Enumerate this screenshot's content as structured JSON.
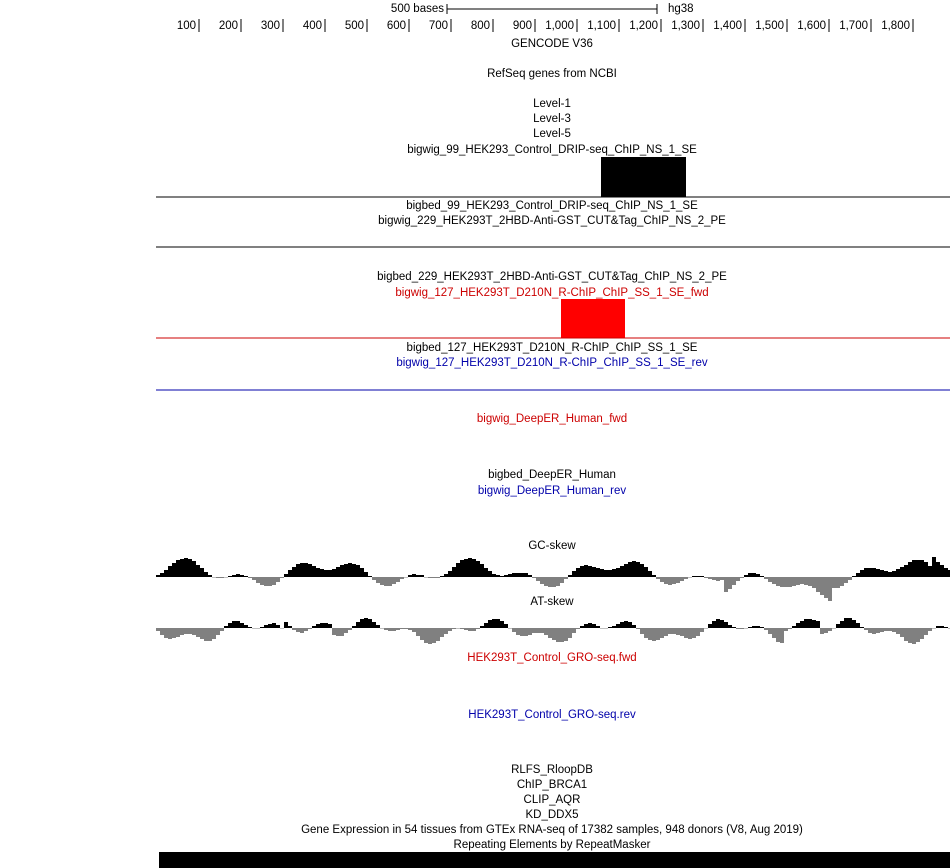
{
  "scale": {
    "label": "500 bases",
    "assembly": "hg38"
  },
  "ruler": [
    "100",
    "200",
    "300",
    "400",
    "500",
    "600",
    "700",
    "800",
    "900",
    "1,000",
    "1,100",
    "1,200",
    "1,300",
    "1,400",
    "1,500",
    "1,600",
    "1,700",
    "1,800"
  ],
  "tracks": [
    {
      "label": "GENCODE V36",
      "color": "#000000"
    },
    {
      "label": "RefSeq genes from NCBI",
      "color": "#000000"
    },
    {
      "label": "Level-1",
      "color": "#000000"
    },
    {
      "label": "Level-3",
      "color": "#000000"
    },
    {
      "label": "Level-5",
      "color": "#000000"
    },
    {
      "label": "bigwig_99_HEK293_Control_DRIP-seq_ChIP_NS_1_SE",
      "color": "#000000"
    },
    {
      "label": "bigbed_99_HEK293_Control_DRIP-seq_ChIP_NS_1_SE",
      "color": "#000000"
    },
    {
      "label": "bigwig_229_HEK293T_2HBD-Anti-GST_CUT&Tag_ChIP_NS_2_PE",
      "color": "#000000"
    },
    {
      "label": "bigbed_229_HEK293T_2HBD-Anti-GST_CUT&Tag_ChIP_NS_2_PE",
      "color": "#000000"
    },
    {
      "label": "bigwig_127_HEK293T_D210N_R-ChIP_ChIP_SS_1_SE_fwd",
      "color": "#cc0000"
    },
    {
      "label": "bigbed_127_HEK293T_D210N_R-ChIP_ChIP_SS_1_SE",
      "color": "#000000"
    },
    {
      "label": "bigwig_127_HEK293T_D210N_R-ChIP_ChIP_SS_1_SE_rev",
      "color": "#0000aa"
    },
    {
      "label": "bigwig_DeepER_Human_fwd",
      "color": "#cc0000"
    },
    {
      "label": "bigbed_DeepER_Human",
      "color": "#000000"
    },
    {
      "label": "bigwig_DeepER_Human_rev",
      "color": "#0000aa"
    },
    {
      "label": "GC-skew",
      "color": "#000000"
    },
    {
      "label": "AT-skew",
      "color": "#000000"
    },
    {
      "label": "HEK293T_Control_GRO-seq.fwd",
      "color": "#cc0000"
    },
    {
      "label": "HEK293T_Control_GRO-seq.rev",
      "color": "#0000aa"
    },
    {
      "label": "RLFS_RloopDB",
      "color": "#000000"
    },
    {
      "label": "ChIP_BRCA1",
      "color": "#000000"
    },
    {
      "label": "CLIP_AQR",
      "color": "#000000"
    },
    {
      "label": "KD_DDX5",
      "color": "#000000"
    },
    {
      "label": "Gene Expression in 54 tissues from GTEx RNA-seq of 17382 samples, 948 donors (V8, Aug 2019)",
      "color": "#000000"
    },
    {
      "label": "Repeating Elements by RepeatMasker",
      "color": "#000000"
    }
  ]
}
